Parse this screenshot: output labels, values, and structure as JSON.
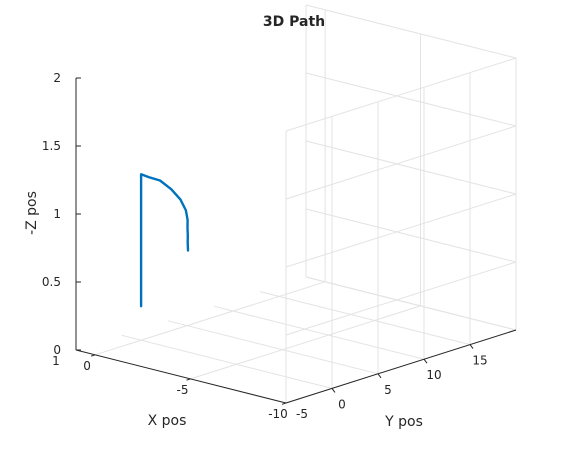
{
  "chart_data": {
    "type": "line",
    "title": "3D Path",
    "xlabel": "X pos",
    "ylabel": "Y pos",
    "zlabel": "-Z pos",
    "grid": true,
    "xlim": [
      -10,
      1
    ],
    "ylim": [
      -5,
      20
    ],
    "zlim": [
      0,
      2
    ],
    "xticks": [
      -10,
      -5,
      0
    ],
    "yticks": [
      0,
      5,
      10,
      15
    ],
    "zticks": [
      0,
      0.5,
      1,
      1.5,
      2
    ],
    "xtick_labels": [
      "-10",
      "-5",
      "0"
    ],
    "ytick_labels": [
      "0",
      "5",
      "10",
      "15"
    ],
    "ztick_labels": [
      "0",
      "0.5",
      "1",
      "1.5",
      "2"
    ],
    "corner_labels": {
      "x_max": "1",
      "y_min": "-5"
    },
    "series": [
      {
        "color": "#0072bd",
        "points": [
          [
            0,
            0,
            0.25
          ],
          [
            0,
            0,
            1.22
          ],
          [
            -0.35,
            0.1,
            1.21
          ],
          [
            -0.75,
            0.5,
            1.19
          ],
          [
            -1.0,
            1.2,
            1.12
          ],
          [
            -1.1,
            2.0,
            1.03
          ],
          [
            -1.0,
            2.8,
            0.93
          ],
          [
            -0.8,
            3.4,
            0.84
          ],
          [
            -0.55,
            3.9,
            0.76
          ],
          [
            -0.35,
            4.35,
            0.69
          ],
          [
            -0.15,
            4.75,
            0.62
          ],
          [
            0.0,
            5.1,
            0.55
          ]
        ]
      }
    ]
  }
}
